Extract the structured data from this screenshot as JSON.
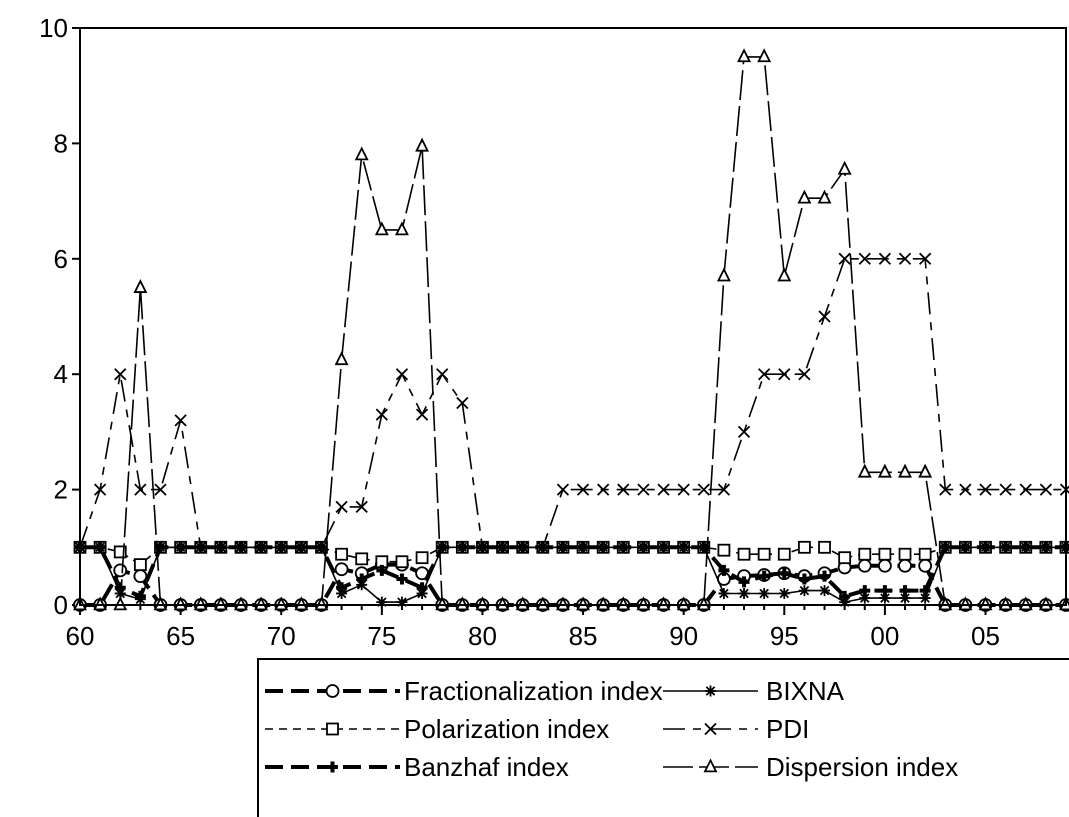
{
  "chart_data": {
    "type": "line",
    "title": "",
    "xlabel": "",
    "ylabel": "",
    "xlim": [
      1960,
      2009
    ],
    "ylim": [
      0,
      10
    ],
    "x_ticks": [
      1960,
      1965,
      1970,
      1975,
      1980,
      1985,
      1990,
      1995,
      2000,
      2005
    ],
    "x_tick_labels": [
      "60",
      "65",
      "70",
      "75",
      "80",
      "85",
      "90",
      "95",
      "00",
      "05"
    ],
    "y_ticks": [
      0,
      2,
      4,
      6,
      8,
      10
    ],
    "y_tick_labels": [
      "0",
      "2",
      "4",
      "6",
      "8",
      "10"
    ],
    "grid": false,
    "legend_position": "bottom",
    "x": [
      1960,
      1961,
      1962,
      1963,
      1964,
      1965,
      1966,
      1967,
      1968,
      1969,
      1970,
      1971,
      1972,
      1973,
      1974,
      1975,
      1976,
      1977,
      1978,
      1979,
      1980,
      1981,
      1982,
      1983,
      1984,
      1985,
      1986,
      1987,
      1988,
      1989,
      1990,
      1991,
      1992,
      1993,
      1994,
      1995,
      1996,
      1997,
      1998,
      1999,
      2000,
      2001,
      2002,
      2003,
      2004,
      2005,
      2006,
      2007,
      2008,
      2009
    ],
    "series": [
      {
        "name": "Fractionalization index",
        "marker": "circle",
        "dash": "long",
        "weight": "heavy",
        "values": [
          0,
          0,
          0.6,
          0.5,
          0,
          0,
          0,
          0,
          0,
          0,
          0,
          0,
          0,
          0.62,
          0.55,
          0.7,
          0.7,
          0.55,
          0,
          0,
          0,
          0,
          0,
          0,
          0,
          0,
          0,
          0,
          0,
          0,
          0,
          0,
          0.45,
          0.5,
          0.52,
          0.55,
          0.5,
          0.55,
          0.65,
          0.68,
          0.68,
          0.68,
          0.68,
          0,
          0,
          0,
          0,
          0,
          0,
          0
        ]
      },
      {
        "name": "Polarization index",
        "marker": "square",
        "dash": "short",
        "weight": "light",
        "values": [
          1,
          1,
          0.92,
          0.7,
          1,
          1,
          1,
          1,
          1,
          1,
          1,
          1,
          1,
          0.88,
          0.8,
          0.75,
          0.75,
          0.82,
          1,
          1,
          1,
          1,
          1,
          1,
          1,
          1,
          1,
          1,
          1,
          1,
          1,
          1,
          0.95,
          0.88,
          0.88,
          0.88,
          1,
          1,
          0.82,
          0.88,
          0.88,
          0.88,
          0.88,
          1,
          1,
          1,
          1,
          1,
          1,
          1
        ]
      },
      {
        "name": "Banzhaf index",
        "marker": "plus",
        "dash": "long",
        "weight": "heavy",
        "values": [
          1,
          1,
          0.3,
          0.15,
          1,
          1,
          1,
          1,
          1,
          1,
          1,
          1,
          1,
          0.3,
          0.45,
          0.6,
          0.45,
          0.3,
          1,
          1,
          1,
          1,
          1,
          1,
          1,
          1,
          1,
          1,
          1,
          1,
          1,
          1,
          0.6,
          0.4,
          0.5,
          0.55,
          0.45,
          0.5,
          0.15,
          0.25,
          0.25,
          0.25,
          0.25,
          1,
          1,
          1,
          1,
          1,
          1,
          1
        ]
      },
      {
        "name": "BIXNA",
        "marker": "star",
        "dash": "dashdot",
        "weight": "light",
        "values": [
          1,
          1,
          0.2,
          0.1,
          1,
          1,
          1,
          1,
          1,
          1,
          1,
          1,
          1,
          0.2,
          0.35,
          0.05,
          0.05,
          0.2,
          1,
          1,
          1,
          1,
          1,
          1,
          1,
          1,
          1,
          1,
          1,
          1,
          1,
          1,
          0.2,
          0.2,
          0.2,
          0.2,
          0.25,
          0.25,
          0.05,
          0.12,
          0.12,
          0.12,
          0.12,
          1,
          1,
          1,
          1,
          1,
          1,
          1
        ]
      },
      {
        "name": "PDI",
        "marker": "cross",
        "dash": "longshort",
        "weight": "light",
        "values": [
          1,
          2,
          4,
          2,
          2,
          3.2,
          1,
          1,
          1,
          1,
          1,
          1,
          1,
          1.7,
          1.7,
          3.3,
          4,
          3.3,
          4,
          3.5,
          1,
          1,
          1,
          1,
          2,
          2,
          2,
          2,
          2,
          2,
          2,
          2,
          2,
          3,
          4,
          4,
          4,
          5,
          6,
          6,
          6,
          6,
          6,
          2,
          2,
          2,
          2,
          2,
          2,
          2
        ]
      },
      {
        "name": "Dispersion index",
        "marker": "triangle",
        "dash": "longlong",
        "weight": "light",
        "values": [
          0,
          0,
          0,
          5.5,
          0,
          0,
          0,
          0,
          0,
          0,
          0,
          0,
          0,
          4.25,
          7.8,
          6.5,
          6.5,
          7.95,
          0,
          0,
          0,
          0,
          0,
          0,
          0,
          0,
          0,
          0,
          0,
          0,
          0,
          0,
          5.7,
          9.5,
          9.5,
          5.7,
          7.05,
          7.05,
          7.55,
          2.3,
          2.3,
          2.3,
          2.3,
          0,
          0,
          0,
          0,
          0,
          0,
          0
        ]
      }
    ],
    "legend_layout": [
      "Fractionalization index",
      "BIXNA",
      "Polarization index",
      "PDI",
      "Banzhaf index",
      "Dispersion index"
    ]
  }
}
